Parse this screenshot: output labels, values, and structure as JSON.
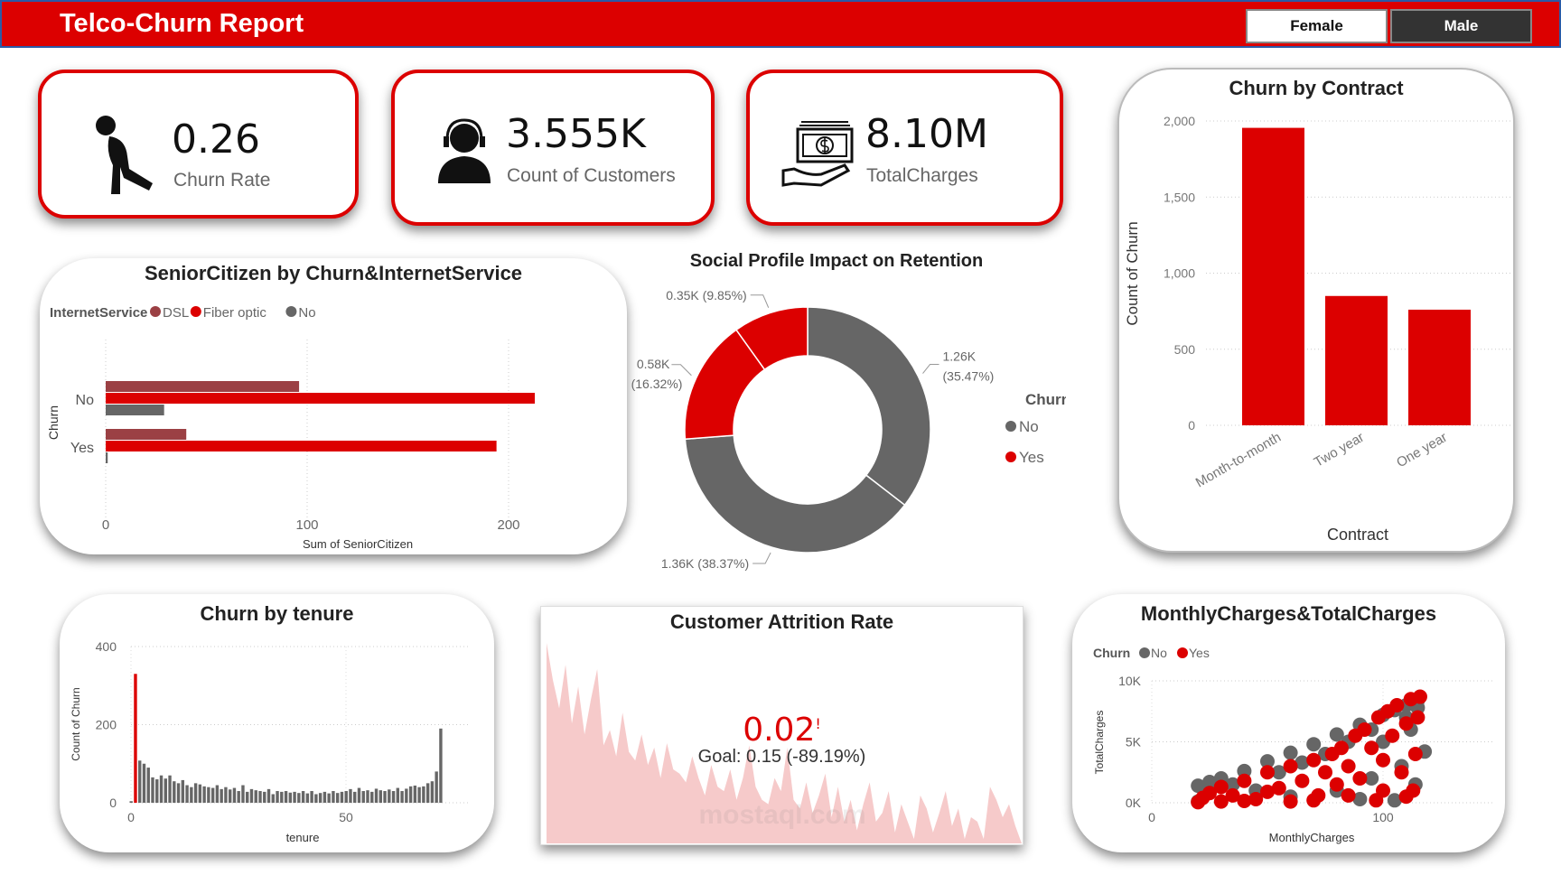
{
  "header": {
    "title": "Telco-Churn Report",
    "gender_buttons": [
      "Female",
      "Male"
    ]
  },
  "kpis": [
    {
      "value": "0.26",
      "label": "Churn Rate",
      "icon": "tired-person-icon"
    },
    {
      "value": "3.555K",
      "label": "Count of Customers",
      "icon": "customer-support-icon"
    },
    {
      "value": "8.10M",
      "label": "TotalCharges",
      "icon": "money-hand-icon"
    }
  ],
  "colors": {
    "accent": "#dc0000",
    "gray": "#666666",
    "dsl": "#9b4044"
  },
  "chart_data": [
    {
      "id": "contract",
      "type": "bar",
      "title": "Churn by Contract",
      "xlabel": "Contract",
      "ylabel": "Count of Churn",
      "categories": [
        "Month-to-month",
        "Two year",
        "One year"
      ],
      "values": [
        1955,
        850,
        760
      ],
      "ylim": [
        0,
        2000
      ],
      "yticks": [
        "0",
        "500",
        "1,000",
        "1,500",
        "2,000"
      ],
      "grid": true
    },
    {
      "id": "senior",
      "type": "bar",
      "orientation": "horizontal",
      "title": "SeniorCitizen by Churn&InternetService",
      "xlabel": "Sum of SeniorCitizen",
      "ylabel": "Churn",
      "legend_title": "InternetService",
      "categories": [
        "No",
        "Yes"
      ],
      "series": [
        {
          "name": "DSL",
          "values": [
            96,
            40
          ]
        },
        {
          "name": "Fiber optic",
          "values": [
            213,
            194
          ]
        },
        {
          "name": "No",
          "values": [
            29,
            1
          ]
        }
      ],
      "xlim": [
        0,
        220
      ],
      "xticks": [
        "0",
        "100",
        "200"
      ]
    },
    {
      "id": "social",
      "type": "pie",
      "donut": true,
      "title": "Social Profile Impact on Retention",
      "legend_title": "Churn",
      "legend": [
        "No",
        "Yes"
      ],
      "slices": [
        {
          "churn": "No",
          "value": 1260,
          "label": "1.26K",
          "pct": "(35.47%)"
        },
        {
          "churn": "No",
          "value": 1360,
          "label": "1.36K",
          "pct": "(38.37%)"
        },
        {
          "churn": "Yes",
          "value": 580,
          "label": "0.58K",
          "pct": "(16.32%)"
        },
        {
          "churn": "Yes",
          "value": 350,
          "label": "0.35K",
          "pct": "(9.85%)"
        }
      ]
    },
    {
      "id": "tenure",
      "type": "bar",
      "title": "Churn by tenure",
      "xlabel": "tenure",
      "ylabel": "Count of Churn",
      "ylim": [
        0,
        400
      ],
      "xticks": [
        "0",
        "50"
      ],
      "yticks": [
        "0",
        "200",
        "400"
      ],
      "highlight_x": 1,
      "x": [
        0,
        1,
        2,
        3,
        4,
        5,
        6,
        7,
        8,
        9,
        10,
        11,
        12,
        13,
        14,
        15,
        16,
        17,
        18,
        19,
        20,
        21,
        22,
        23,
        24,
        25,
        26,
        27,
        28,
        29,
        30,
        31,
        32,
        33,
        34,
        35,
        36,
        37,
        38,
        39,
        40,
        41,
        42,
        43,
        44,
        45,
        46,
        47,
        48,
        49,
        50,
        51,
        52,
        53,
        54,
        55,
        56,
        57,
        58,
        59,
        60,
        61,
        62,
        63,
        64,
        65,
        66,
        67,
        68,
        69,
        70,
        71,
        72
      ],
      "values": [
        4,
        330,
        108,
        100,
        90,
        65,
        60,
        70,
        62,
        70,
        55,
        50,
        58,
        45,
        40,
        50,
        47,
        42,
        40,
        38,
        45,
        35,
        40,
        34,
        38,
        30,
        45,
        28,
        35,
        32,
        30,
        28,
        35,
        22,
        30,
        28,
        30,
        26,
        28,
        25,
        30,
        24,
        30,
        22,
        25,
        28,
        24,
        30,
        25,
        28,
        30,
        35,
        28,
        38,
        30,
        32,
        28,
        36,
        32,
        30,
        34,
        30,
        38,
        30,
        36,
        42,
        44,
        40,
        42,
        50,
        55,
        80,
        190
      ]
    },
    {
      "id": "attrition",
      "type": "area",
      "title": "Customer Attrition Rate",
      "kpi_value": "0.02",
      "kpi_flag": "!",
      "goal_text": "Goal: 0.15 (-89.19%)",
      "watermark": "mostaql.com",
      "values": [
        0.92,
        0.75,
        0.62,
        0.82,
        0.55,
        0.72,
        0.5,
        0.66,
        0.8,
        0.45,
        0.52,
        0.4,
        0.6,
        0.42,
        0.38,
        0.5,
        0.36,
        0.44,
        0.3,
        0.46,
        0.34,
        0.32,
        0.28,
        0.4,
        0.3,
        0.22,
        0.36,
        0.26,
        0.24,
        0.34,
        0.2,
        0.3,
        0.45,
        0.26,
        0.2,
        0.18,
        0.3,
        0.24,
        0.44,
        0.2,
        0.16,
        0.28,
        0.14,
        0.22,
        0.32,
        0.12,
        0.26,
        0.1,
        0.2,
        0.06,
        0.18,
        0.28,
        0.1,
        0.14,
        0.24,
        0.05,
        0.18,
        0.1,
        0.02,
        0.22,
        0.16,
        0.05,
        0.14,
        0.24,
        0.08,
        0.16,
        0.02,
        0.12,
        0.1,
        0.02,
        0.26,
        0.2,
        0.12,
        0.18,
        0.08,
        0.0
      ]
    },
    {
      "id": "scatter",
      "type": "scatter",
      "title": "MonthlyCharges&TotalCharges",
      "xlabel": "MonthlyCharges",
      "ylabel": "TotalCharges",
      "legend_title": "Churn",
      "xlim": [
        0,
        135
      ],
      "ylim": [
        0,
        10000
      ],
      "xticks": [
        "0",
        "100"
      ],
      "yticks": [
        "0K",
        "5K",
        "10K"
      ],
      "series": [
        {
          "name": "No",
          "points": [
            [
              20,
              100
            ],
            [
              20,
              1400
            ],
            [
              25,
              1700
            ],
            [
              30,
              2000
            ],
            [
              40,
              2600
            ],
            [
              50,
              3400
            ],
            [
              60,
              4100
            ],
            [
              70,
              4800
            ],
            [
              80,
              5600
            ],
            [
              90,
              6400
            ],
            [
              100,
              7200
            ],
            [
              105,
              7600
            ],
            [
              110,
              8000
            ],
            [
              115,
              8400
            ],
            [
              112,
              6000
            ],
            [
              118,
              4200
            ],
            [
              108,
              3000
            ],
            [
              95,
              2000
            ],
            [
              80,
              1000
            ],
            [
              60,
              500
            ],
            [
              45,
              1000
            ],
            [
              35,
              1500
            ],
            [
              55,
              2500
            ],
            [
              65,
              3300
            ],
            [
              75,
              4000
            ],
            [
              85,
              5000
            ],
            [
              95,
              6000
            ],
            [
              100,
              5000
            ],
            [
              110,
              7000
            ],
            [
              115,
              7800
            ],
            [
              90,
              300
            ],
            [
              105,
              200
            ],
            [
              114,
              1500
            ]
          ]
        },
        {
          "name": "Yes",
          "points": [
            [
              20,
              50
            ],
            [
              22,
              400
            ],
            [
              25,
              800
            ],
            [
              30,
              1300
            ],
            [
              35,
              600
            ],
            [
              40,
              1800
            ],
            [
              45,
              300
            ],
            [
              50,
              2500
            ],
            [
              55,
              1200
            ],
            [
              60,
              3000
            ],
            [
              65,
              1800
            ],
            [
              70,
              3500
            ],
            [
              72,
              600
            ],
            [
              75,
              2500
            ],
            [
              78,
              4000
            ],
            [
              80,
              1500
            ],
            [
              82,
              4500
            ],
            [
              85,
              3000
            ],
            [
              88,
              5500
            ],
            [
              90,
              2000
            ],
            [
              92,
              6000
            ],
            [
              95,
              4500
            ],
            [
              98,
              7000
            ],
            [
              100,
              1000
            ],
            [
              100,
              3500
            ],
            [
              102,
              7500
            ],
            [
              104,
              5500
            ],
            [
              106,
              8000
            ],
            [
              108,
              2500
            ],
            [
              110,
              6500
            ],
            [
              112,
              8500
            ],
            [
              113,
              1000
            ],
            [
              114,
              4000
            ],
            [
              115,
              7000
            ],
            [
              116,
              8700
            ],
            [
              110,
              500
            ],
            [
              97,
              200
            ],
            [
              85,
              600
            ],
            [
              70,
              200
            ],
            [
              60,
              100
            ],
            [
              50,
              900
            ],
            [
              30,
              100
            ],
            [
              40,
              150
            ]
          ]
        }
      ]
    }
  ]
}
